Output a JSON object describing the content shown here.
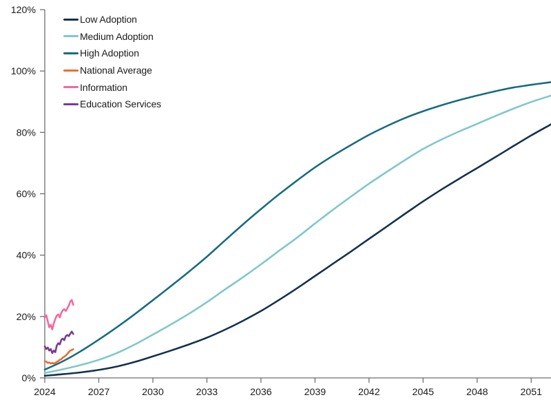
{
  "chart_data": {
    "type": "line",
    "title": "",
    "xlabel": "",
    "ylabel": "",
    "x_axis": {
      "range": [
        2024,
        2052.1
      ],
      "tick_years": [
        2024,
        2027,
        2030,
        2033,
        2036,
        2039,
        2042,
        2045,
        2048,
        2051
      ]
    },
    "y_axis": {
      "range": [
        0,
        120
      ],
      "tick_percents": [
        0,
        20,
        40,
        60,
        80,
        100,
        120
      ],
      "tick_suffix": "%"
    },
    "legend_position": "top-left",
    "series": [
      {
        "name": "Low Adoption",
        "color": "#14314e",
        "style": "smooth",
        "x_start": 2024,
        "x_step": 1,
        "values": [
          0.7,
          1.2,
          1.8,
          2.6,
          3.7,
          5.2,
          7.0,
          8.9,
          10.9,
          13.1,
          15.7,
          18.6,
          21.8,
          25.4,
          29.2,
          33.2,
          37.2,
          41.2,
          45.3,
          49.4,
          53.5,
          57.5,
          61.3,
          64.9,
          68.4,
          71.9,
          75.5,
          79.0,
          82.3
        ]
      },
      {
        "name": "Medium Adoption",
        "color": "#7ec8cb",
        "style": "smooth",
        "x_start": 2024,
        "x_step": 1,
        "values": [
          1.6,
          2.8,
          4.2,
          5.9,
          8.1,
          10.9,
          14.1,
          17.4,
          20.9,
          24.7,
          28.8,
          32.8,
          37.0,
          41.4,
          45.7,
          50.3,
          54.8,
          59.1,
          63.3,
          67.2,
          71.0,
          74.6,
          77.6,
          80.3,
          82.8,
          85.3,
          87.7,
          89.9,
          91.8
        ]
      },
      {
        "name": "High Adoption",
        "color": "#176c80",
        "style": "smooth",
        "x_start": 2024,
        "x_step": 1,
        "values": [
          2.7,
          5.4,
          8.7,
          12.5,
          16.5,
          20.8,
          25.3,
          29.9,
          34.6,
          39.5,
          44.8,
          50.0,
          55.0,
          59.8,
          64.3,
          68.6,
          72.4,
          75.9,
          79.2,
          82.1,
          84.7,
          86.9,
          88.8,
          90.5,
          92.0,
          93.4,
          94.6,
          95.5,
          96.3
        ]
      },
      {
        "name": "National Average",
        "color": "#f26a32",
        "style": "jagged",
        "x_start": 2024,
        "x_step": 0.0833,
        "values": [
          5.4,
          5.3,
          4.9,
          5.0,
          4.7,
          4.9,
          4.7,
          4.9,
          5.2,
          5.5,
          5.9,
          6.1,
          6.6,
          6.9,
          7.3,
          7.8,
          8.4,
          8.9,
          9.1,
          9.3
        ]
      },
      {
        "name": "Information",
        "color": "#f4679f",
        "style": "jagged",
        "x_start": 2024,
        "x_step": 0.0833,
        "values": [
          19.7,
          20.4,
          18.4,
          16.5,
          17.3,
          15.8,
          17.8,
          19.2,
          20.3,
          20.7,
          19.7,
          21.2,
          22.0,
          22.4,
          21.8,
          22.6,
          23.6,
          24.8,
          25.4,
          23.8
        ]
      },
      {
        "name": "Education Services",
        "color": "#7c3a8d",
        "style": "jagged",
        "x_start": 2024,
        "x_step": 0.0833,
        "values": [
          10.3,
          9.4,
          9.9,
          8.9,
          9.4,
          8.1,
          8.9,
          8.4,
          10.5,
          11.3,
          10.9,
          12.4,
          12.8,
          12.3,
          13.6,
          14.0,
          13.6,
          14.4,
          15.1,
          14.3
        ]
      }
    ],
    "axis_color": "#6d6e71",
    "label_color": "#1a1a1a"
  }
}
